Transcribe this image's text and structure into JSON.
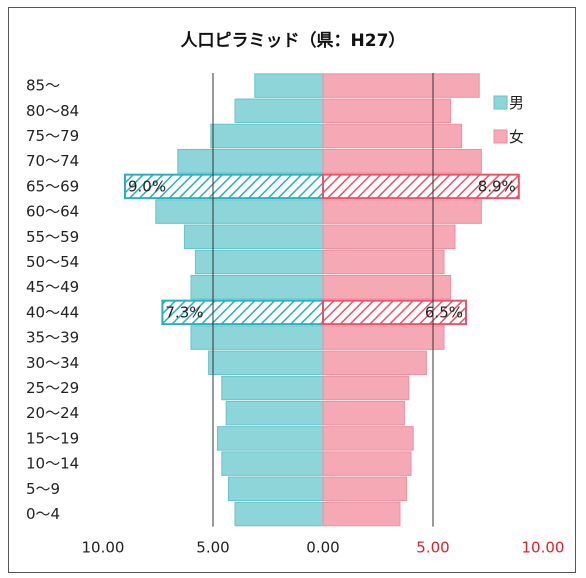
{
  "chart_data": {
    "type": "bar",
    "title": "人口ピラミッド（県：H27）",
    "categories": [
      "85～",
      "80～84",
      "75～79",
      "70～74",
      "65～69",
      "60～64",
      "55～59",
      "50～54",
      "45～49",
      "40～44",
      "35～39",
      "30～34",
      "25～29",
      "20～24",
      "15～19",
      "10～14",
      "5～9",
      "0～4"
    ],
    "series": [
      {
        "name": "男",
        "color": "#8ED5DA",
        "values": [
          3.1,
          4.0,
          5.1,
          6.6,
          9.0,
          7.6,
          6.3,
          5.8,
          6.0,
          7.3,
          6.0,
          5.2,
          4.6,
          4.4,
          4.8,
          4.6,
          4.3,
          4.0
        ]
      },
      {
        "name": "女",
        "color": "#F5A9B5",
        "values": [
          7.1,
          5.8,
          6.3,
          7.2,
          8.9,
          7.2,
          6.0,
          5.5,
          5.8,
          6.5,
          5.5,
          4.7,
          3.9,
          3.7,
          4.1,
          4.0,
          3.8,
          3.5
        ]
      }
    ],
    "highlighted": [
      {
        "category": "65～69",
        "male_label": "9.0%",
        "female_label": "8.9%"
      },
      {
        "category": "40～44",
        "male_label": "7.3%",
        "female_label": "6.5%"
      }
    ],
    "x_ticks": [
      "10.00",
      "5.00",
      "0.00",
      "5.00",
      "10.00"
    ],
    "xlim": [
      -10,
      10
    ],
    "male_tick_color": "#222222",
    "female_tick_color": "#E0202A",
    "hatch_male_color": "#2AAFBB",
    "hatch_female_color": "#E8536A",
    "legend_position": "top-right",
    "grid": "vertical lines at 5.00 only"
  }
}
